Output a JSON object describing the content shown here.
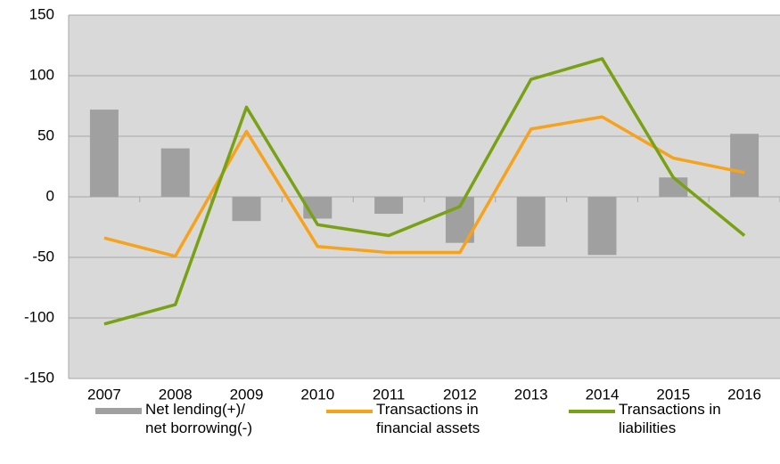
{
  "chart_data": {
    "type": "combo",
    "categories": [
      "2007",
      "2008",
      "2009",
      "2010",
      "2011",
      "2012",
      "2013",
      "2014",
      "2015",
      "2016"
    ],
    "series": [
      {
        "name": "Net lending(+)/\nnet borrowing(-)",
        "type": "bar",
        "color": "#a0a0a0",
        "values": [
          72,
          40,
          -20,
          -18,
          -14,
          -38,
          -41,
          -48,
          16,
          52
        ]
      },
      {
        "name": "Transactions in\nfinancial assets",
        "type": "line",
        "color": "#f7a21b",
        "values": [
          -34,
          -49,
          54,
          -41,
          -46,
          -46,
          56,
          66,
          32,
          20
        ]
      },
      {
        "name": "Transactions in\nliabilities",
        "type": "line",
        "color": "#79a114",
        "values": [
          -105,
          -89,
          74,
          -23,
          -32,
          -8,
          97,
          114,
          16,
          -32
        ]
      }
    ],
    "ylim": [
      -150,
      150
    ],
    "yticks": [
      -150,
      -100,
      -50,
      0,
      50,
      100,
      150
    ],
    "grid": true,
    "legend": "bottom",
    "plot_background": "#d9d9d9"
  }
}
